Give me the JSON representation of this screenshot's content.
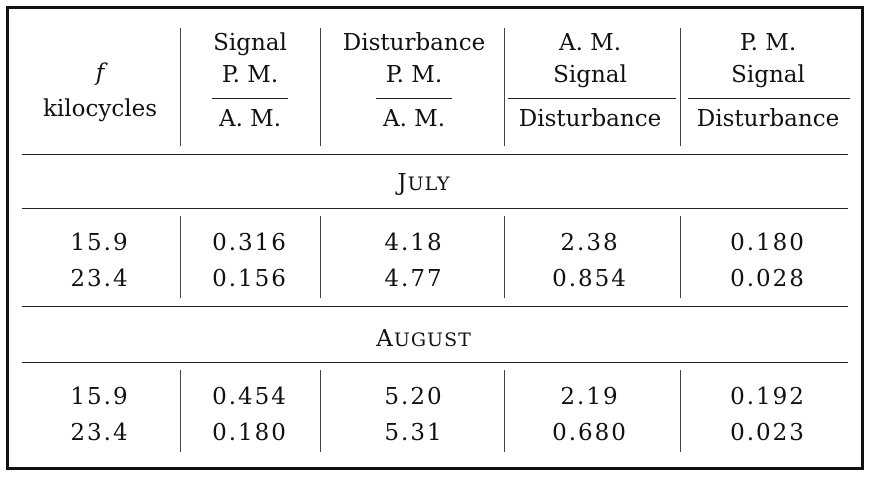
{
  "table": {
    "headers": {
      "f_symbol": "f",
      "f_unit": "kilocycles",
      "col1": {
        "top": "Signal",
        "num": "P. M.",
        "den": "A. M."
      },
      "col2": {
        "top": "Disturbance",
        "num": "P. M.",
        "den": "A. M."
      },
      "col3": {
        "num1": "A. M.",
        "num2": "Signal",
        "den": "Disturbance"
      },
      "col4": {
        "num1": "P. M.",
        "num2": "Signal",
        "den": "Disturbance"
      }
    },
    "sections": [
      {
        "title_cap": "J",
        "title_rest": "ULY",
        "rows": [
          {
            "f": "15.9",
            "c1": "0.316",
            "c2": "4.18",
            "c3": "2.38",
            "c4": "0.180"
          },
          {
            "f": "23.4",
            "c1": "0.156",
            "c2": "4.77",
            "c3": "0.854",
            "c4": "0.028"
          }
        ]
      },
      {
        "title_cap": "A",
        "title_rest": "UGUST",
        "rows": [
          {
            "f": "15.9",
            "c1": "0.454",
            "c2": "5.20",
            "c3": "2.19",
            "c4": "0.192"
          },
          {
            "f": "23.4",
            "c1": "0.180",
            "c2": "5.31",
            "c3": "0.680",
            "c4": "0.023"
          }
        ]
      }
    ]
  }
}
